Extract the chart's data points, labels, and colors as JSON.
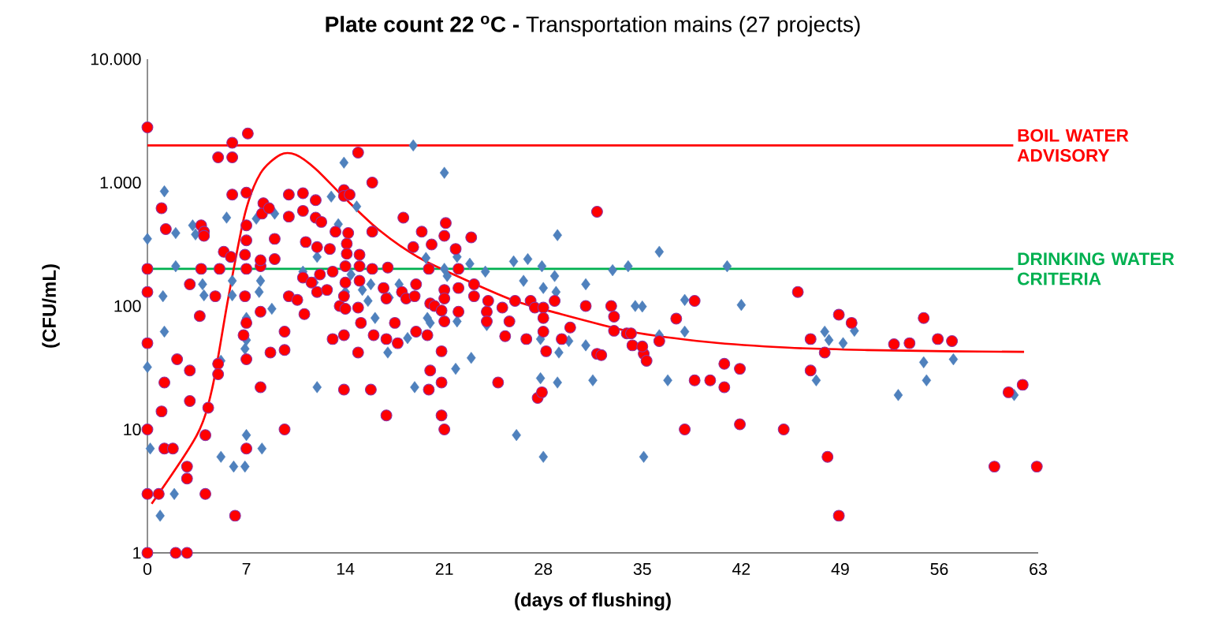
{
  "chart_data": {
    "type": "scatter",
    "title": "**Plate count 22 $^{o}$C -** Transportation mains (27 projects)",
    "xlabel": "(days of flushing)",
    "ylabel": "(CFU/mL)",
    "log": "y",
    "grid": false,
    "xlim": [
      0,
      63
    ],
    "xticks": [
      0,
      7,
      14,
      21,
      28,
      35,
      42,
      49,
      56,
      63
    ],
    "ylim": [
      1,
      10000
    ],
    "yticks": [
      1,
      10,
      100,
      {
        "value": 1000,
        "label": "1.000"
      },
      {
        "value": 10000,
        "label": "10.000"
      }
    ],
    "series": [
      {
        "marker": "diamond",
        "color": "#4f81bd",
        "x": [
          0,
          0,
          0.2,
          0.9,
          1.2,
          1.1,
          1.2,
          1.9,
          2,
          2,
          3.2,
          3.9,
          4,
          3.4,
          5.2,
          5.2,
          5.6,
          6.1,
          6,
          6,
          6.9,
          7,
          6.9,
          7,
          7,
          7.7,
          8,
          8.1,
          7.9,
          8.8,
          9,
          11,
          12,
          12,
          11.8,
          13,
          13.5,
          13.9,
          14,
          14.4,
          14.8,
          15.2,
          15.6,
          15.8,
          16.1,
          17,
          17.1,
          17.8,
          18.4,
          18.8,
          18.9,
          19.7,
          19.8,
          20,
          21,
          21,
          21.2,
          21.9,
          21.8,
          21.9,
          22.8,
          22.9,
          23.9,
          24,
          25.9,
          26.1,
          26.9,
          26.6,
          27.8,
          27.8,
          28,
          27.9,
          28,
          28.8,
          29,
          28.9,
          29,
          29.1,
          29.8,
          31,
          31,
          31.5,
          32.9,
          34,
          34.5,
          35.1,
          35,
          36.2,
          36.2,
          36.8,
          38,
          38,
          41,
          42,
          47.3,
          47.9,
          48.2,
          49.2,
          50,
          53.1,
          54.9,
          55.1,
          57,
          61.3
        ],
        "values": [
          350,
          32,
          7,
          2,
          850,
          120,
          62,
          3,
          390,
          210,
          450,
          150,
          122,
          380,
          6,
          36,
          520,
          5,
          160,
          122,
          5,
          9,
          45,
          53,
          80,
          510,
          160,
          7,
          130,
          95,
          560,
          190,
          22,
          250,
          155,
          770,
          460,
          1450,
          130,
          180,
          640,
          135,
          110,
          150,
          80,
          42,
          117,
          150,
          55,
          2000,
          22,
          245,
          80,
          73,
          1200,
          200,
          175,
          250,
          31,
          75,
          220,
          38,
          190,
          70,
          230,
          9,
          240,
          160,
          26,
          54,
          6,
          210,
          140,
          175,
          375,
          130,
          24,
          42,
          52,
          150,
          48,
          25,
          195,
          210,
          100,
          6,
          99,
          275,
          58,
          25,
          112,
          62,
          210,
          102,
          25,
          62,
          53,
          50,
          63,
          19,
          35,
          25,
          37,
          19
        ]
      },
      {
        "marker": "circle",
        "color": "#ff0000",
        "x": [
          0,
          0,
          0,
          0,
          0,
          0,
          0,
          0.8,
          1,
          1,
          1.2,
          1.2,
          1.3,
          1.8,
          2,
          2.1,
          2.8,
          2.8,
          2.8,
          3,
          3,
          3,
          3.7,
          3.8,
          3.8,
          4,
          4,
          4.1,
          4.1,
          4.3,
          4.8,
          5,
          5,
          5,
          5.1,
          5.4,
          5.9,
          6,
          6,
          6.2,
          6,
          6.9,
          6.9,
          7,
          7,
          7,
          7,
          7.1,
          7,
          7,
          7,
          6.8,
          8,
          8,
          8,
          8,
          8.2,
          8.1,
          8.6,
          8.7,
          9,
          9,
          9.7,
          9.7,
          9.7,
          10,
          10,
          10,
          10.6,
          11,
          11,
          11,
          11.1,
          11.2,
          11.6,
          11.9,
          11.9,
          12,
          12,
          12.3,
          12.2,
          12.7,
          12.9,
          13.1,
          13.1,
          13.3,
          13.6,
          13.9,
          13.9,
          13.9,
          13.9,
          13.9,
          14.2,
          14.1,
          14.1,
          14,
          14,
          14,
          14.3,
          14.9,
          14.9,
          14.9,
          15,
          15,
          15.1,
          15,
          15.9,
          15.9,
          15.8,
          15.9,
          16,
          16.7,
          16.9,
          16.9,
          16.9,
          17,
          17.5,
          17.7,
          18.1,
          18,
          18.3,
          18.8,
          18.9,
          19,
          19,
          19.4,
          19.8,
          19.9,
          19.9,
          20,
          20,
          20.1,
          20.3,
          20.8,
          20.8,
          21,
          20.8,
          21,
          21.1,
          21,
          21,
          20.8,
          21,
          21.8,
          22,
          22,
          22,
          22.9,
          23.1,
          23.1,
          24.1,
          24,
          24,
          24.8,
          25.1,
          25.3,
          25.6,
          26,
          26.8,
          27.1,
          27.4,
          27.6,
          27.9,
          28,
          28.2,
          28,
          28,
          28.8,
          29.3,
          29.9,
          31,
          31.8,
          31.8,
          32.1,
          32.8,
          33,
          33,
          33.9,
          34.2,
          34.3,
          35.1,
          35,
          35.3,
          36.2,
          37.4,
          38,
          38.7,
          38.7,
          39.8,
          40.8,
          40.8,
          41.9,
          41.9,
          45,
          46,
          46.9,
          46.9,
          47.9,
          48.1,
          48.9,
          48.9,
          49.8,
          52.8,
          53.9,
          54.9,
          55.9,
          56.9,
          59.9,
          60.9,
          61.9,
          62.9
        ],
        "values": [
          2800,
          200,
          130,
          50,
          10,
          3,
          1,
          3,
          14,
          620,
          24,
          7,
          420,
          7,
          1,
          37,
          1,
          5,
          4,
          30,
          17,
          150,
          83,
          200,
          450,
          400,
          370,
          3,
          9,
          15,
          120,
          1600,
          34,
          28,
          200,
          275,
          250,
          1600,
          2100,
          2,
          800,
          120,
          260,
          450,
          200,
          340,
          830,
          2500,
          37,
          7,
          73,
          58,
          22,
          90,
          210,
          235,
          680,
          560,
          620,
          42,
          240,
          350,
          62,
          44,
          10,
          800,
          530,
          120,
          112,
          820,
          170,
          590,
          86,
          330,
          155,
          720,
          520,
          130,
          300,
          480,
          180,
          135,
          290,
          54,
          190,
          400,
          100,
          870,
          780,
          21,
          120,
          58,
          390,
          320,
          265,
          210,
          155,
          95,
          800,
          1750,
          42,
          97,
          260,
          210,
          73,
          160,
          1000,
          400,
          21,
          200,
          58,
          140,
          115,
          54,
          13,
          205,
          73,
          50,
          520,
          130,
          115,
          300,
          120,
          62,
          150,
          400,
          58,
          21,
          200,
          105,
          30,
          315,
          100,
          43,
          13,
          10,
          24,
          370,
          470,
          135,
          75,
          92,
          115,
          290,
          200,
          90,
          140,
          360,
          120,
          150,
          110,
          90,
          75,
          24,
          97,
          57,
          75,
          110,
          54,
          110,
          97,
          18,
          20,
          62,
          43,
          97,
          80,
          110,
          54,
          67,
          100,
          580,
          41,
          40,
          100,
          82,
          63,
          60,
          60,
          48,
          41,
          47,
          36,
          52,
          79,
          10,
          110,
          25,
          25,
          34,
          22,
          31,
          11,
          10,
          130,
          30,
          54,
          42,
          6,
          85,
          2,
          73,
          49,
          50,
          80,
          54,
          52,
          5,
          20,
          23,
          5
        ]
      },
      {
        "type": "line",
        "color": "#ff0000",
        "x": [
          0.3,
          3.5,
          4.6,
          5.7,
          6.9,
          8,
          9.4,
          10.5,
          11.9,
          13.9,
          16.3,
          19.1,
          21.9,
          25.8,
          28.6,
          34.2,
          39.7,
          45.3,
          50.9,
          56.5,
          62
        ],
        "values": [
          2.5,
          9,
          22,
          113,
          560,
          1190,
          1680,
          1680,
          1290,
          760,
          420,
          250,
          175,
          112,
          90,
          62,
          51,
          46,
          44,
          43,
          42.5
        ]
      }
    ],
    "ref_lines": [
      {
        "axis": "y",
        "value": 2000,
        "label": "BOIL WATER ADVISORY",
        "color": "#ff0000"
      },
      {
        "axis": "y",
        "value": 200,
        "label": "DRINKING WATER CRITERIA",
        "color": "#00b050"
      }
    ]
  }
}
